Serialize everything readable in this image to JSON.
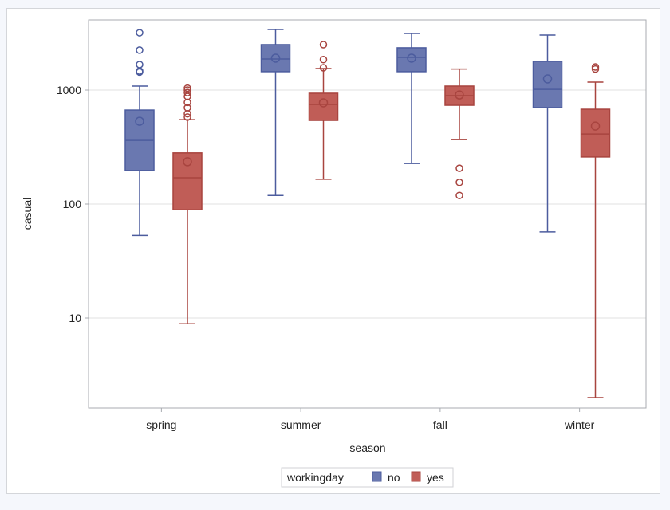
{
  "chart_data": {
    "type": "boxplot",
    "title": "",
    "xlabel": "season",
    "ylabel": "casual",
    "yscale": "log",
    "ylim": [
      1.7,
      4200
    ],
    "yticks": [
      10,
      100,
      1000
    ],
    "ytick_labels": [
      "10",
      "100",
      "1000"
    ],
    "grid": true,
    "categories": [
      "spring",
      "summer",
      "fall",
      "winter"
    ],
    "legend": {
      "title": "workingday",
      "placement": "bottom-center",
      "entries": [
        {
          "name": "no",
          "color": "#6a78b0"
        },
        {
          "name": "yes",
          "color": "#c05d57"
        }
      ]
    },
    "series": [
      {
        "name": "no",
        "color": "#6a78b0",
        "edge_color": "#4c5c9e",
        "boxes": [
          {
            "category": "spring",
            "whisker_low": 53,
            "q1": 197,
            "median": 362,
            "q3": 668,
            "whisker_high": 1084,
            "mean": 533,
            "outliers": [
              1440,
              1470,
              1675,
              2240,
              3184
            ]
          },
          {
            "category": "summer",
            "whisker_low": 119,
            "q1": 1450,
            "median": 1875,
            "q3": 2505,
            "whisker_high": 3400,
            "mean": 1905,
            "outliers": []
          },
          {
            "category": "fall",
            "whisker_low": 227,
            "q1": 1450,
            "median": 1935,
            "q3": 2350,
            "whisker_high": 3140,
            "mean": 1905,
            "outliers": []
          },
          {
            "category": "winter",
            "whisker_low": 57,
            "q1": 702,
            "median": 1015,
            "q3": 1788,
            "whisker_high": 3040,
            "mean": 1253,
            "outliers": []
          }
        ]
      },
      {
        "name": "yes",
        "color": "#c05d57",
        "edge_color": "#a8443f",
        "boxes": [
          {
            "category": "spring",
            "whisker_low": 8.9,
            "q1": 89,
            "median": 170,
            "q3": 281,
            "whisker_high": 550,
            "mean": 235,
            "outliers": [
              580,
              620,
              700,
              780,
              880,
              950,
              1000,
              1040
            ]
          },
          {
            "category": "summer",
            "whisker_low": 165,
            "q1": 542,
            "median": 748,
            "q3": 938,
            "whisker_high": 1545,
            "mean": 773,
            "outliers": [
              1570,
              1850,
              2505
            ]
          },
          {
            "category": "fall",
            "whisker_low": 368,
            "q1": 736,
            "median": 893,
            "q3": 1084,
            "whisker_high": 1530,
            "mean": 906,
            "outliers": [
              119,
              155,
              206
            ]
          },
          {
            "category": "winter",
            "whisker_low": 2,
            "q1": 259,
            "median": 412,
            "q3": 679,
            "whisker_high": 1175,
            "mean": 484,
            "outliers": [
              1530,
              1595
            ]
          }
        ]
      }
    ]
  }
}
